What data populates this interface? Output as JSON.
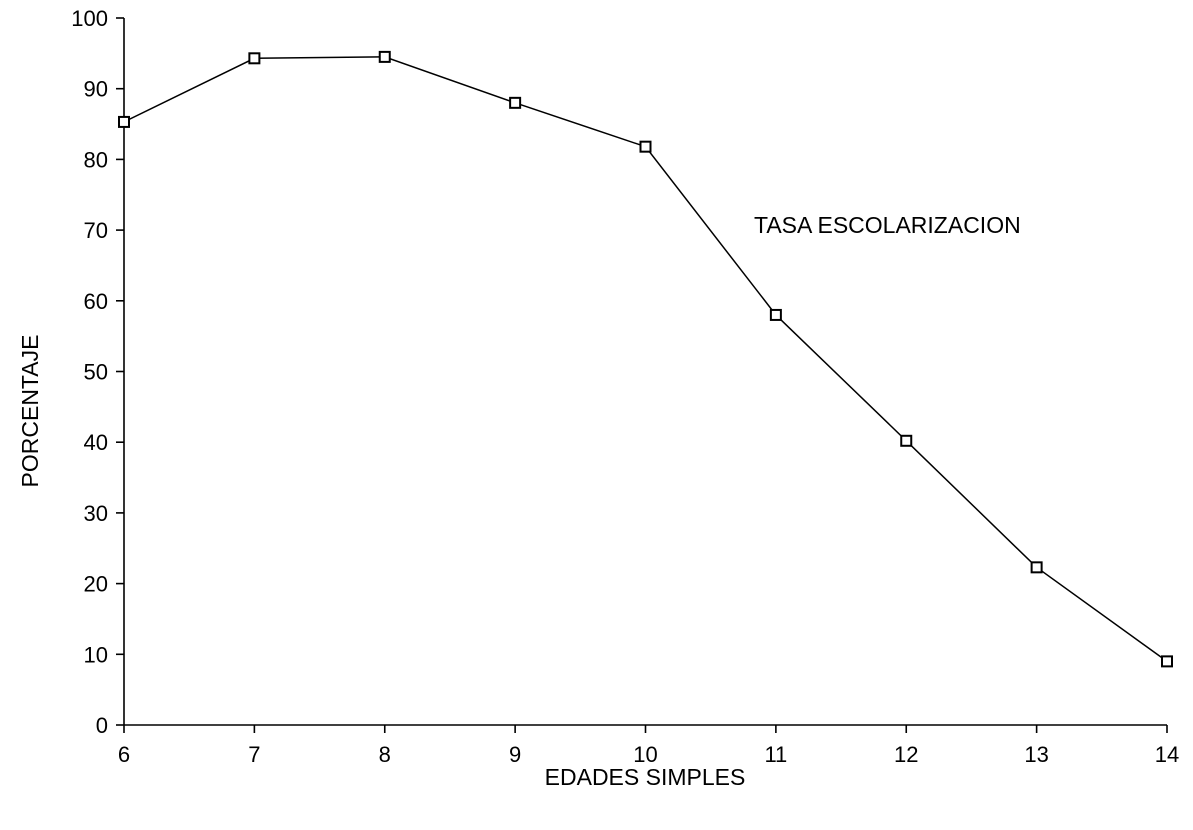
{
  "chart_data": {
    "type": "line",
    "title": "",
    "xlabel": "EDADES SIMPLES",
    "ylabel": "PORCENTAJE",
    "annotation": "TASA ESCOLARIZACION",
    "x": [
      6,
      7,
      8,
      9,
      10,
      11,
      12,
      13,
      14
    ],
    "xlim": [
      6,
      14
    ],
    "ylim": [
      0,
      100
    ],
    "yticks": [
      0,
      10,
      20,
      30,
      40,
      50,
      60,
      70,
      80,
      90,
      100
    ],
    "xticks": [
      6,
      7,
      8,
      9,
      10,
      11,
      12,
      13,
      14
    ],
    "grid": false,
    "marker": "open-square",
    "colors": {
      "line": "#000000",
      "marker_fill": "#ffffff"
    },
    "series": [
      {
        "values": [
          85.3,
          94.3,
          94.5,
          88.0,
          81.8,
          58.0,
          40.2,
          22.3,
          9.0
        ]
      }
    ]
  }
}
